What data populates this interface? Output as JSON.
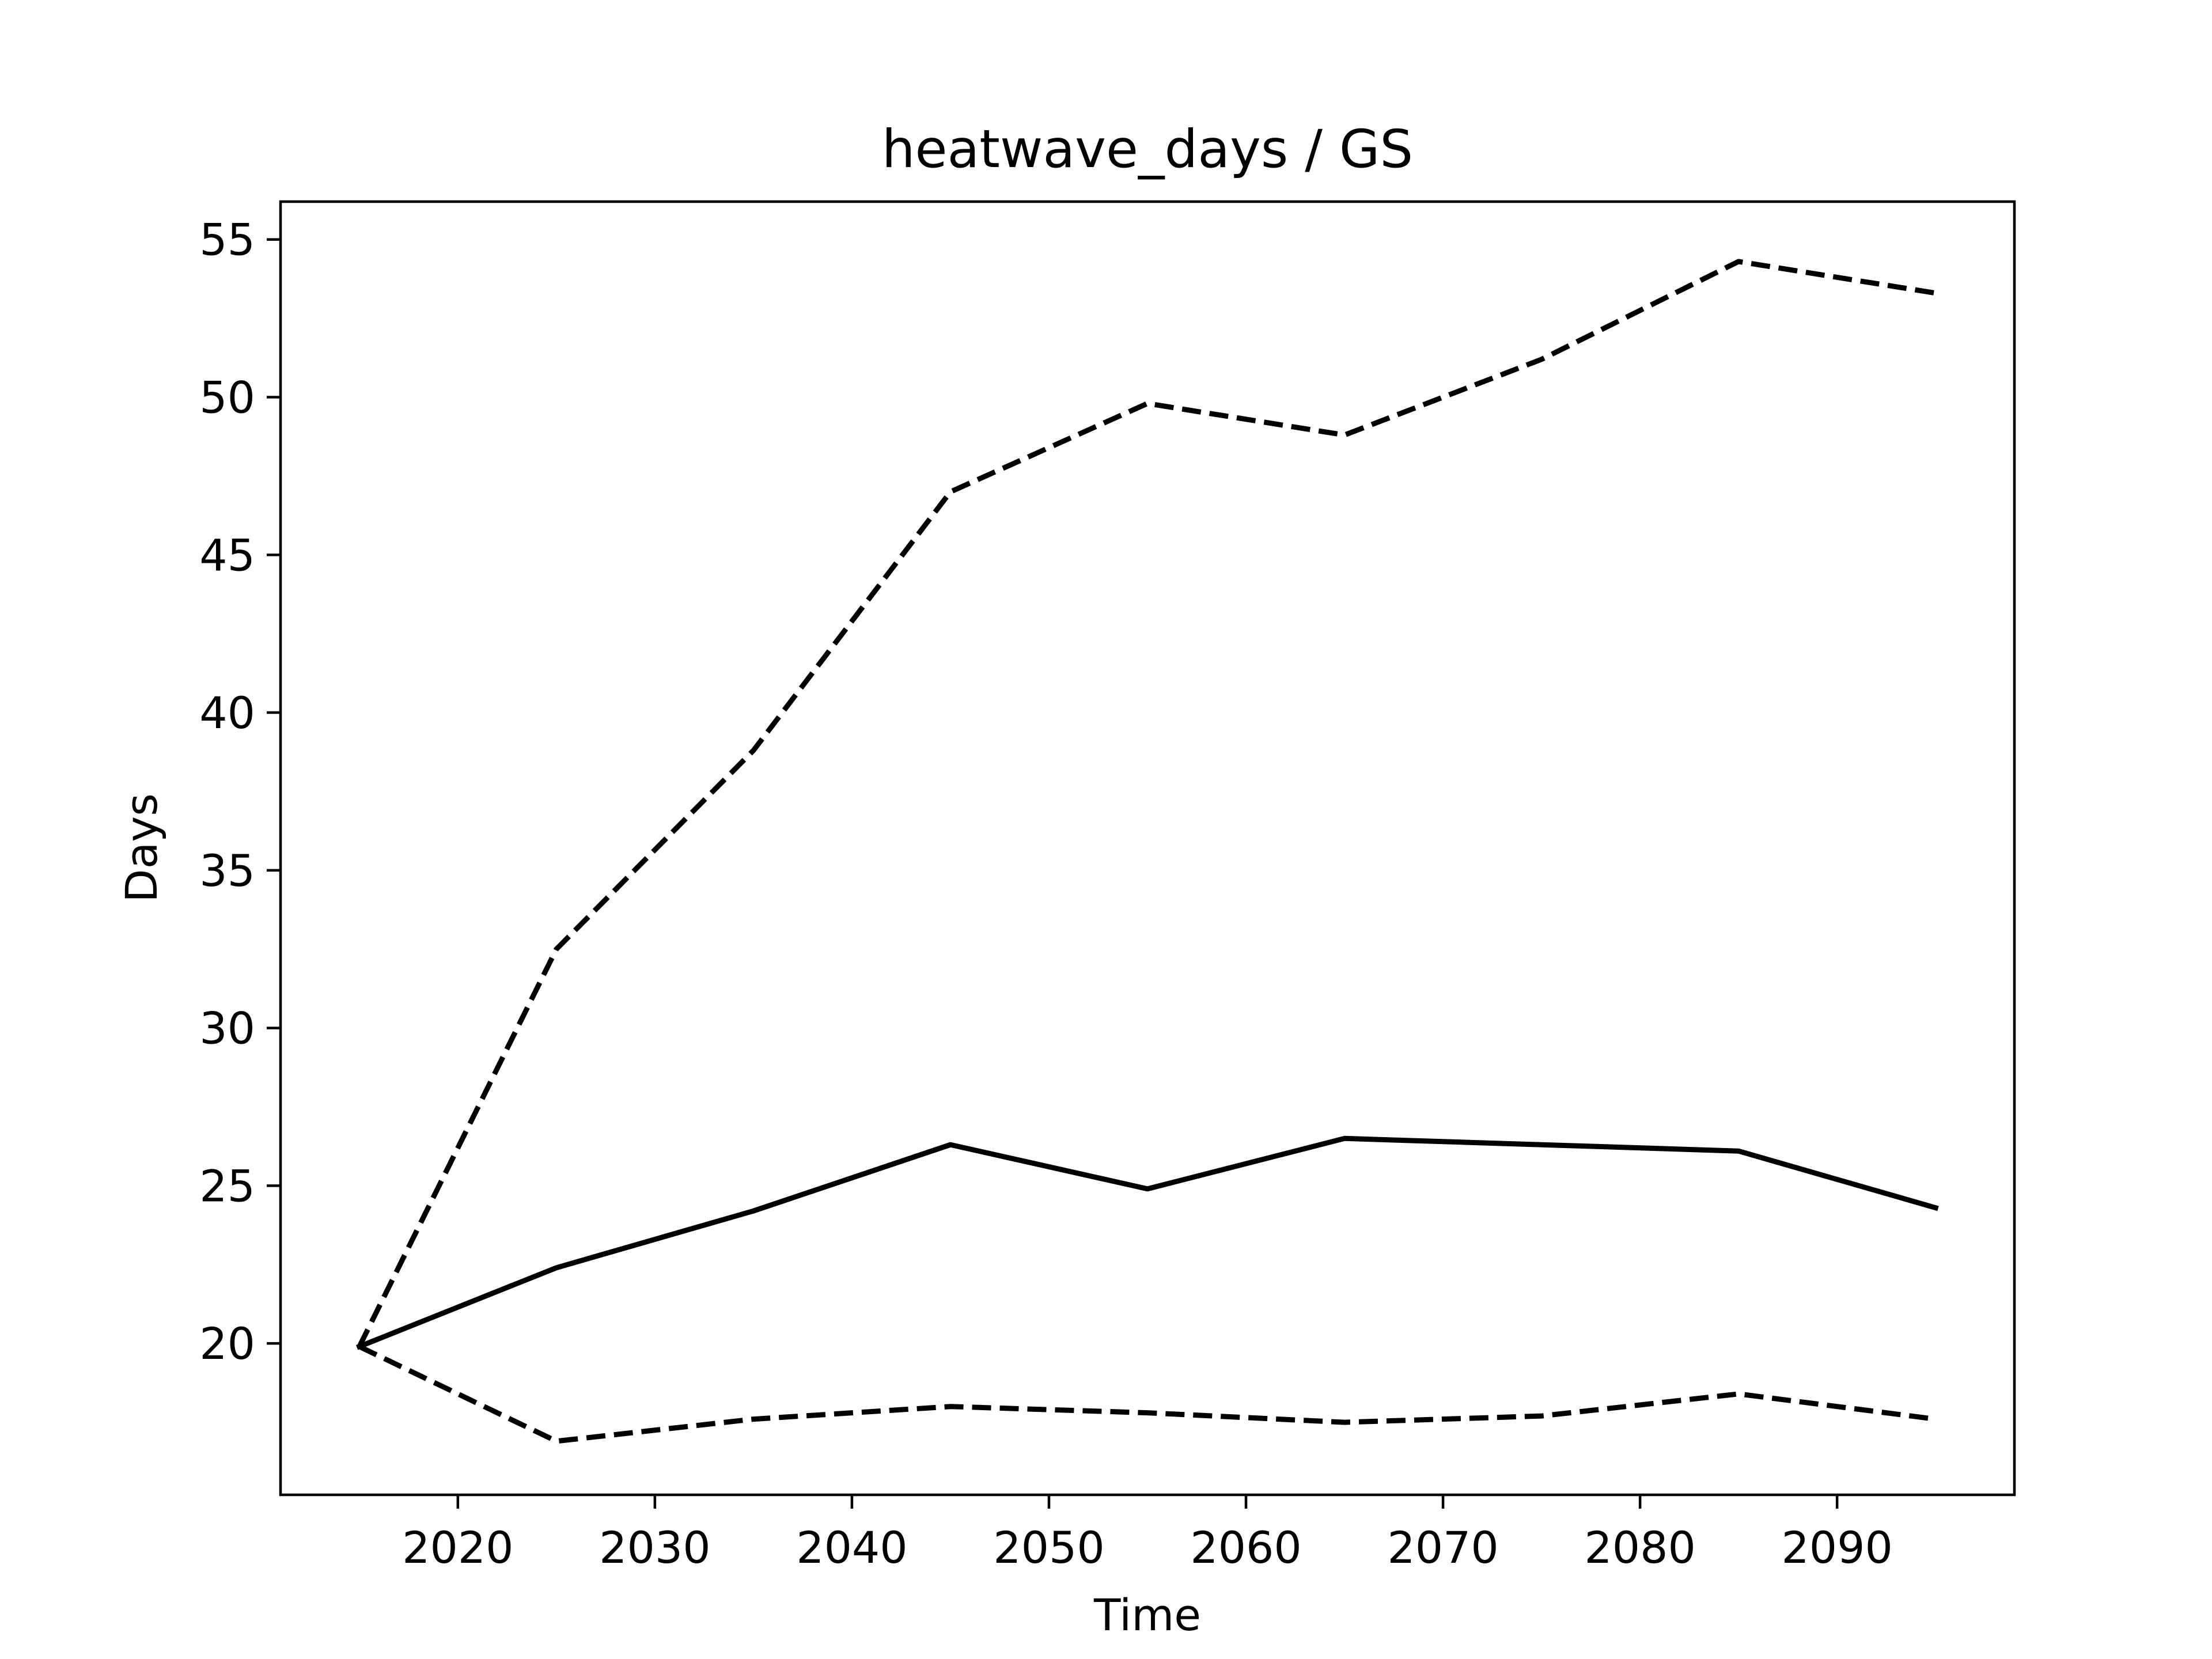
{
  "chart_data": {
    "type": "line",
    "title": "heatwave_days / GS",
    "xlabel": "Time",
    "ylabel": "Days",
    "xlim": [
      2011,
      2099
    ],
    "ylim": [
      15.2,
      56.2
    ],
    "xticks": [
      2020,
      2030,
      2040,
      2050,
      2060,
      2070,
      2080,
      2090
    ],
    "yticks": [
      20,
      25,
      30,
      35,
      40,
      45,
      50,
      55
    ],
    "grid": false,
    "legend": "none",
    "x": [
      2015,
      2025,
      2035,
      2045,
      2055,
      2065,
      2075,
      2085,
      2095
    ],
    "series": [
      {
        "style": "solid",
        "color": "#000000",
        "values": [
          19.9,
          22.4,
          24.2,
          26.3,
          24.9,
          26.5,
          26.3,
          26.1,
          24.3
        ]
      },
      {
        "style": "dashed",
        "color": "#000000",
        "values": [
          19.9,
          32.5,
          38.8,
          47.0,
          49.8,
          48.8,
          51.2,
          54.3,
          53.3
        ]
      },
      {
        "style": "dashed",
        "color": "#000000",
        "values": [
          19.9,
          16.9,
          17.6,
          18.0,
          17.8,
          17.5,
          17.7,
          18.4,
          17.6
        ]
      }
    ]
  }
}
